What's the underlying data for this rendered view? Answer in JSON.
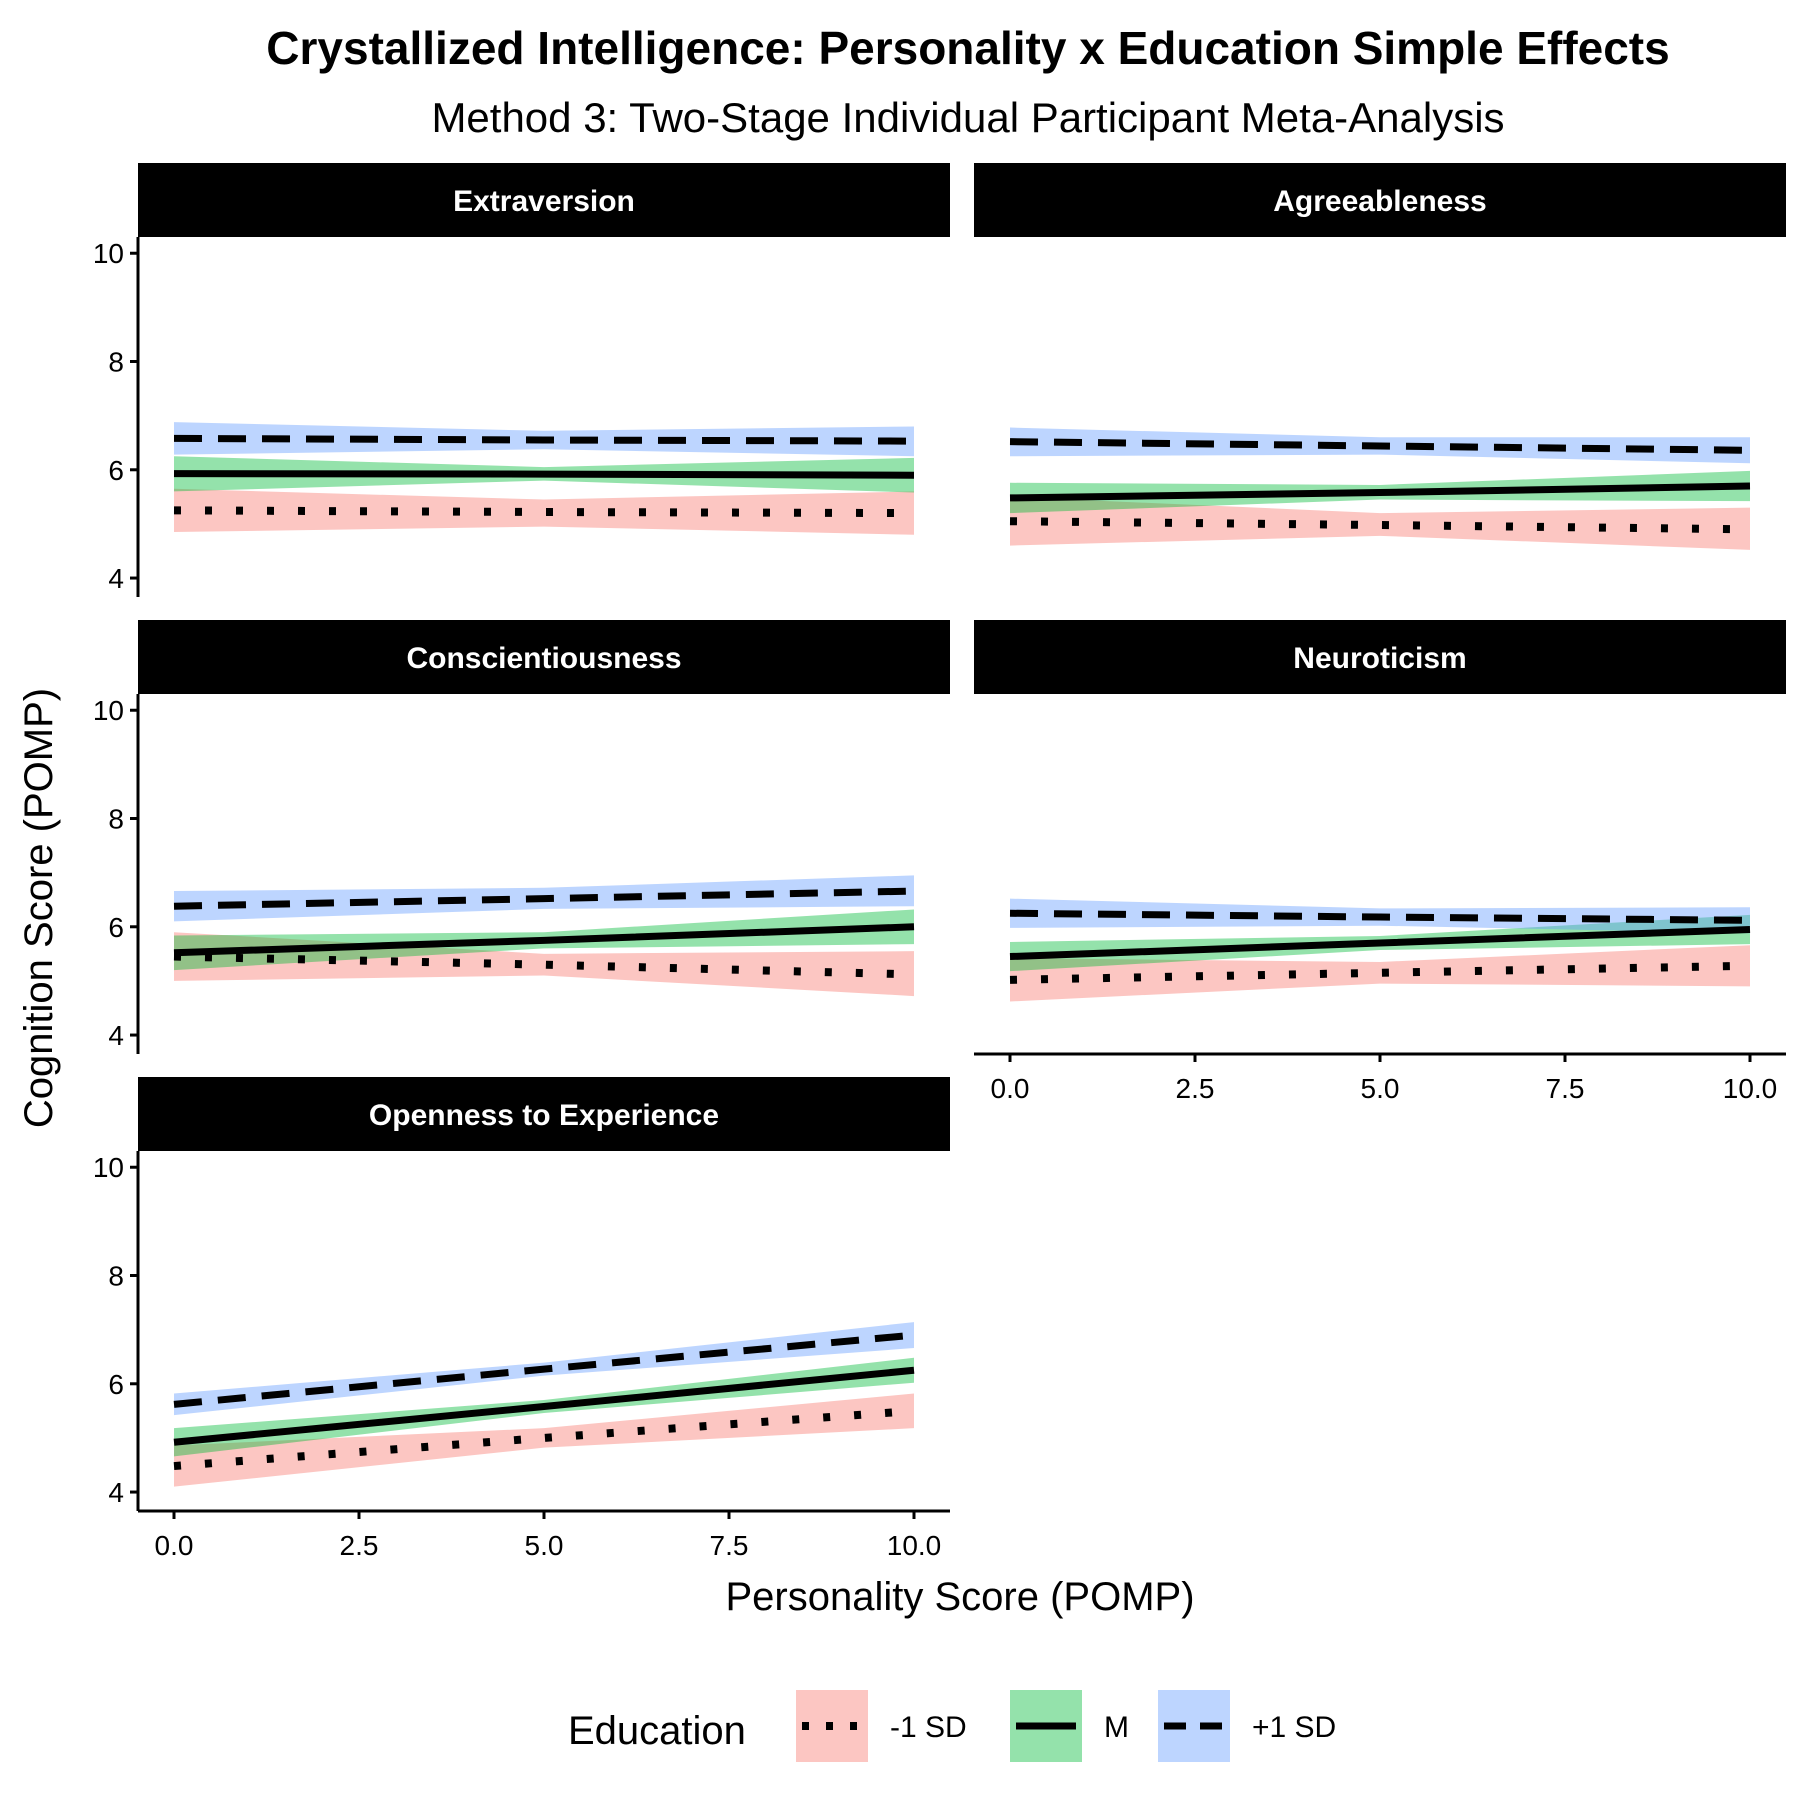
{
  "title": "Crystallized Intelligence: Personality x Education Simple Effects",
  "subtitle": "Method 3: Two-Stage Individual Participant Meta-Analysis",
  "xlabel": "Personality Score (POMP)",
  "ylabel": "Cognition Score (POMP)",
  "legend": {
    "title": "Education",
    "placement": "bottom",
    "items": [
      {
        "label": "-1 SD",
        "linetype": "dotted",
        "fill": "#F8766D"
      },
      {
        "label": "M",
        "linetype": "solid",
        "fill": "#00BA38"
      },
      {
        "label": "+1 SD",
        "linetype": "dashed",
        "fill": "#619CFF"
      }
    ]
  },
  "colors": {
    "low": "#F8766D",
    "mid": "#00BA38",
    "high": "#619CFF",
    "strip_bg": "#000000",
    "line": "#000000"
  },
  "chart_data": {
    "type": "line",
    "grid": false,
    "xlim": [
      0,
      10
    ],
    "ylim": [
      4,
      10
    ],
    "x_ticks": [
      "0.0",
      "2.5",
      "5.0",
      "7.5",
      "10.0"
    ],
    "y_ticks": [
      "4",
      "6",
      "8",
      "10"
    ],
    "facets": [
      {
        "strip": "Extraversion",
        "series": [
          {
            "name": "-1 SD",
            "x": [
              0,
              5,
              10
            ],
            "y": [
              5.25,
              5.22,
              5.2
            ],
            "lower": [
              4.85,
              4.95,
              4.8
            ],
            "upper": [
              5.65,
              5.45,
              5.6
            ]
          },
          {
            "name": "M",
            "x": [
              0,
              5,
              10
            ],
            "y": [
              5.93,
              5.92,
              5.9
            ],
            "lower": [
              5.6,
              5.8,
              5.58
            ],
            "upper": [
              6.25,
              6.05,
              6.22
            ]
          },
          {
            "name": "+1 SD",
            "x": [
              0,
              5,
              10
            ],
            "y": [
              6.58,
              6.55,
              6.53
            ],
            "lower": [
              6.28,
              6.38,
              6.25
            ],
            "upper": [
              6.88,
              6.72,
              6.8
            ]
          }
        ]
      },
      {
        "strip": "Agreeableness",
        "series": [
          {
            "name": "-1 SD",
            "x": [
              0,
              5,
              10
            ],
            "y": [
              5.05,
              4.98,
              4.9
            ],
            "lower": [
              4.6,
              4.78,
              4.52
            ],
            "upper": [
              5.5,
              5.2,
              5.3
            ]
          },
          {
            "name": "M",
            "x": [
              0,
              5,
              10
            ],
            "y": [
              5.48,
              5.58,
              5.7
            ],
            "lower": [
              5.2,
              5.45,
              5.42
            ],
            "upper": [
              5.76,
              5.72,
              5.98
            ]
          },
          {
            "name": "+1 SD",
            "x": [
              0,
              5,
              10
            ],
            "y": [
              6.52,
              6.44,
              6.36
            ],
            "lower": [
              6.25,
              6.28,
              6.12
            ],
            "upper": [
              6.78,
              6.6,
              6.6
            ]
          }
        ]
      },
      {
        "strip": "Conscientiousness",
        "series": [
          {
            "name": "-1 SD",
            "x": [
              0,
              5,
              10
            ],
            "y": [
              5.45,
              5.3,
              5.12
            ],
            "lower": [
              5.0,
              5.1,
              4.72
            ],
            "upper": [
              5.9,
              5.5,
              5.55
            ]
          },
          {
            "name": "M",
            "x": [
              0,
              5,
              10
            ],
            "y": [
              5.52,
              5.75,
              6.0
            ],
            "lower": [
              5.2,
              5.6,
              5.68
            ],
            "upper": [
              5.84,
              5.9,
              6.32
            ]
          },
          {
            "name": "+1 SD",
            "x": [
              0,
              5,
              10
            ],
            "y": [
              6.38,
              6.52,
              6.66
            ],
            "lower": [
              6.1,
              6.33,
              6.38
            ],
            "upper": [
              6.66,
              6.72,
              6.95
            ]
          }
        ]
      },
      {
        "strip": "Neuroticism",
        "series": [
          {
            "name": "-1 SD",
            "x": [
              0,
              5,
              10
            ],
            "y": [
              5.02,
              5.15,
              5.28
            ],
            "lower": [
              4.62,
              4.95,
              4.9
            ],
            "upper": [
              5.42,
              5.35,
              5.66
            ]
          },
          {
            "name": "M",
            "x": [
              0,
              5,
              10
            ],
            "y": [
              5.45,
              5.7,
              5.95
            ],
            "lower": [
              5.18,
              5.57,
              5.68
            ],
            "upper": [
              5.72,
              5.83,
              6.22
            ]
          },
          {
            "name": "+1 SD",
            "x": [
              0,
              5,
              10
            ],
            "y": [
              6.25,
              6.18,
              6.12
            ],
            "lower": [
              5.98,
              6.02,
              5.88
            ],
            "upper": [
              6.52,
              6.34,
              6.36
            ]
          }
        ]
      },
      {
        "strip": "Openness to Experience",
        "series": [
          {
            "name": "-1 SD",
            "x": [
              0,
              5,
              10
            ],
            "y": [
              4.48,
              5.0,
              5.5
            ],
            "lower": [
              4.1,
              4.82,
              5.18
            ],
            "upper": [
              4.86,
              5.18,
              5.82
            ]
          },
          {
            "name": "M",
            "x": [
              0,
              5,
              10
            ],
            "y": [
              4.92,
              5.58,
              6.25
            ],
            "lower": [
              4.66,
              5.46,
              6.02
            ],
            "upper": [
              5.18,
              5.7,
              6.48
            ]
          },
          {
            "name": "+1 SD",
            "x": [
              0,
              5,
              10
            ],
            "y": [
              5.62,
              6.27,
              6.9
            ],
            "lower": [
              5.42,
              6.15,
              6.66
            ],
            "upper": [
              5.82,
              6.39,
              7.14
            ]
          }
        ]
      }
    ]
  }
}
